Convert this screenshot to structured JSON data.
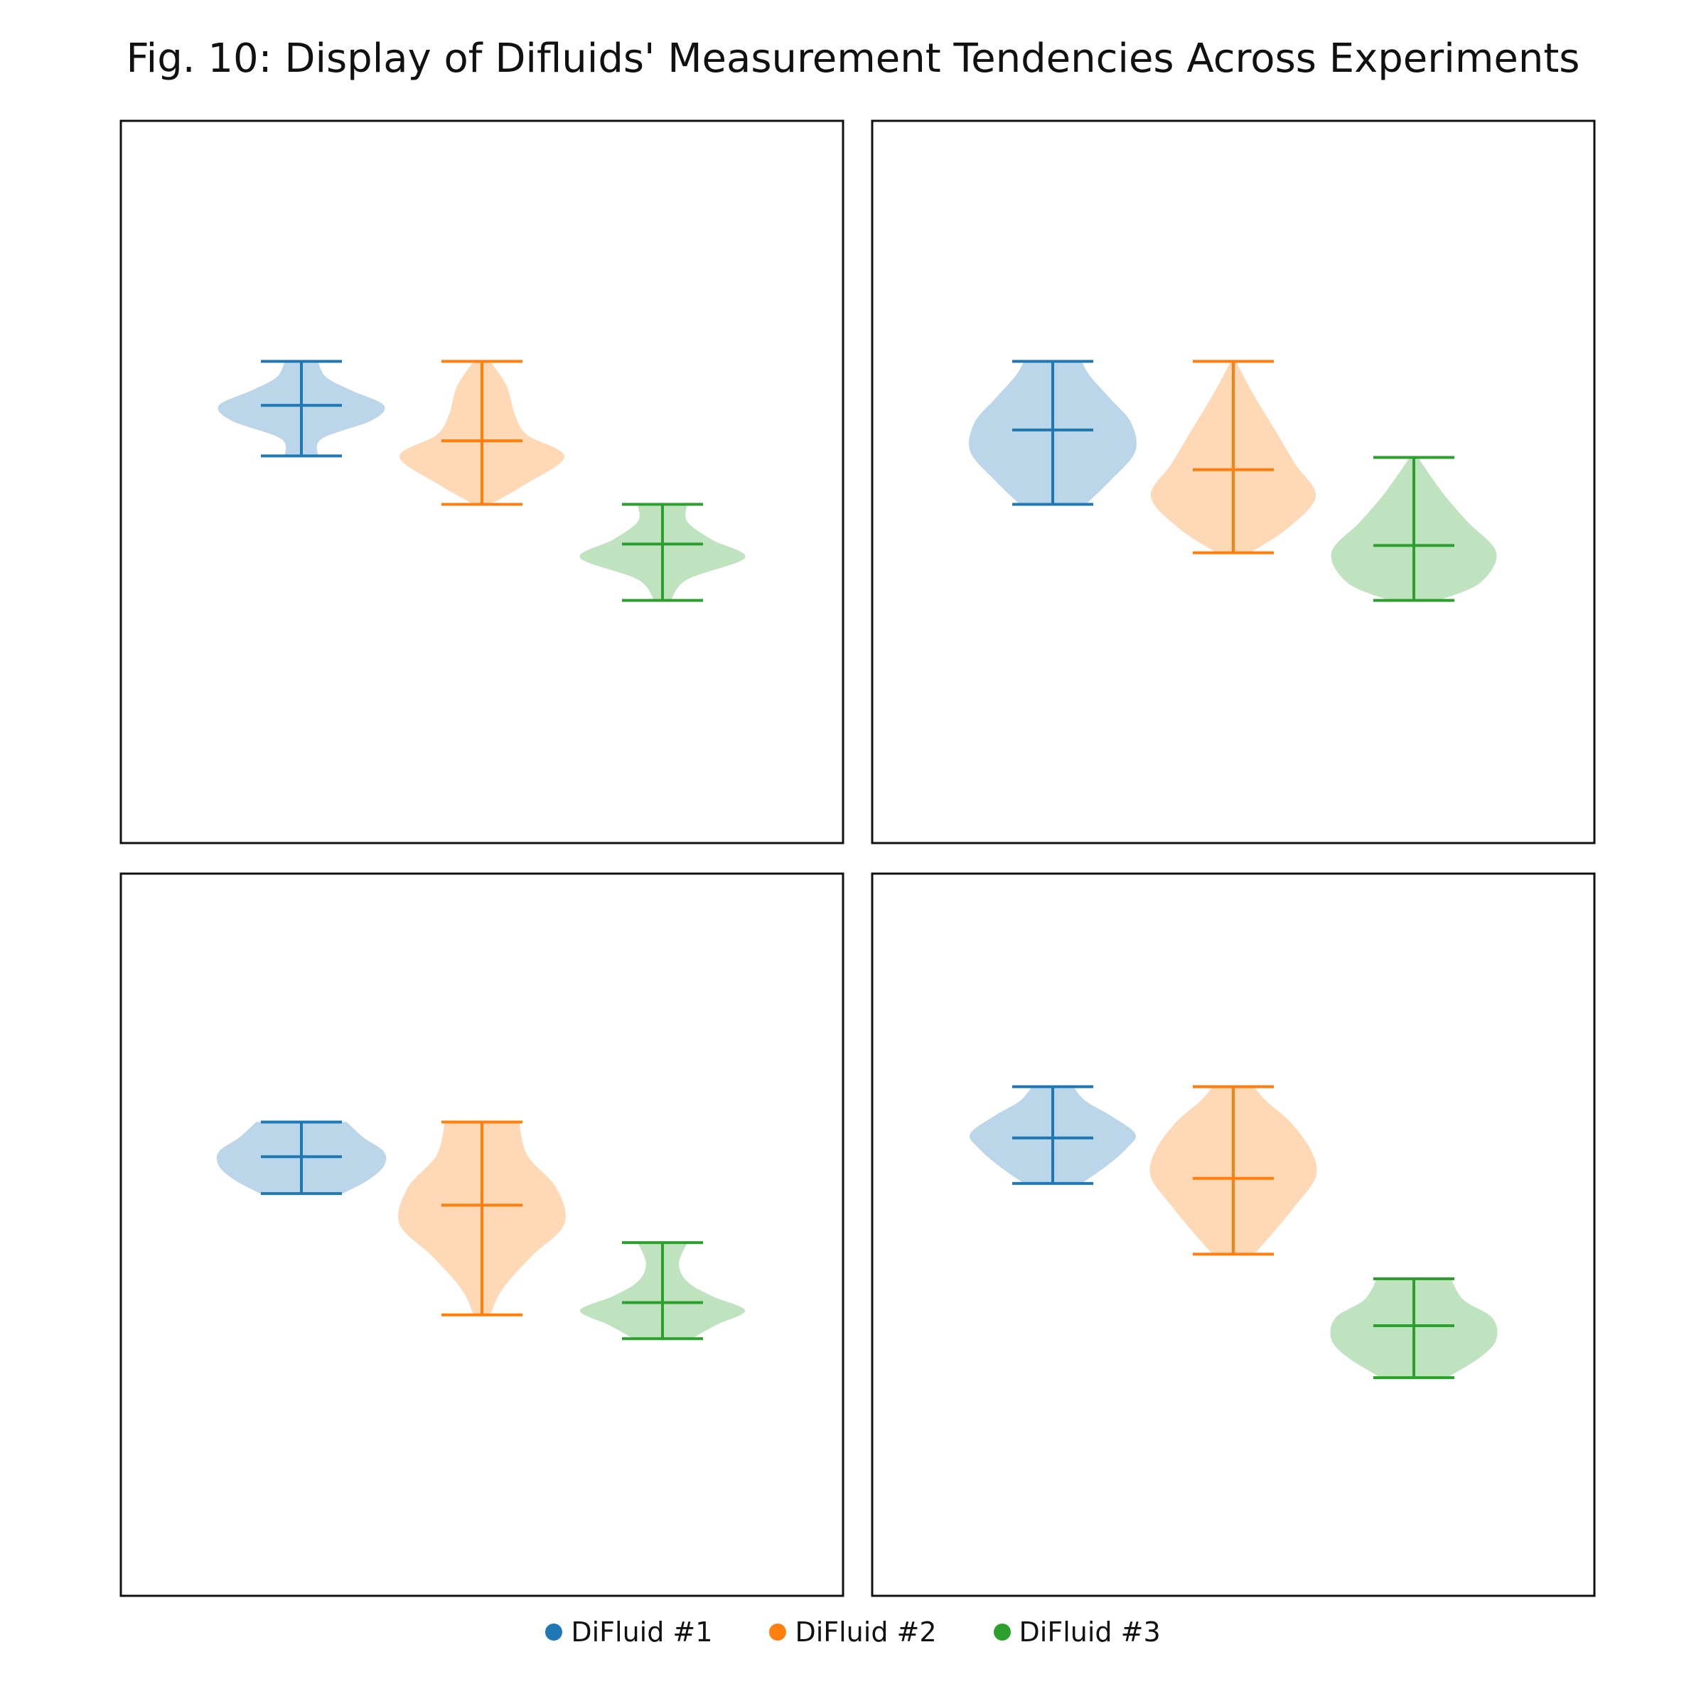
{
  "figure_title": "Fig. 10: Display of Difluids' Measurement Tendencies Across Experiments",
  "legend": [
    {
      "label": "DiFluid #1",
      "color": "#1f77b4"
    },
    {
      "label": "DiFluid #2",
      "color": "#ff7f0e"
    },
    {
      "label": "DiFluid #3",
      "color": "#2ca02c"
    }
  ],
  "chart_data": [
    {
      "type": "violin",
      "ylim": [
        0,
        100
      ],
      "grid": false,
      "series": [
        {
          "name": "DiFluid #1",
          "min": 53.6,
          "median": 60.6,
          "max": 66.7,
          "density": [
            [
              53.6,
              0.2
            ],
            [
              56,
              0.25
            ],
            [
              58.5,
              0.85
            ],
            [
              60.6,
              1.0
            ],
            [
              62.7,
              0.6
            ],
            [
              64.5,
              0.3
            ],
            [
              66.7,
              0.2
            ]
          ]
        },
        {
          "name": "DiFluid #2",
          "min": 46.9,
          "median": 55.7,
          "max": 66.7,
          "density": [
            [
              46.9,
              0.1
            ],
            [
              49.5,
              0.5
            ],
            [
              53.5,
              1.0
            ],
            [
              56.5,
              0.55
            ],
            [
              59.3,
              0.4
            ],
            [
              63.3,
              0.3
            ],
            [
              66.7,
              0.1
            ]
          ]
        },
        {
          "name": "DiFluid #3",
          "min": 33.6,
          "median": 41.4,
          "max": 46.9,
          "density": [
            [
              33.6,
              0.1
            ],
            [
              36.5,
              0.3
            ],
            [
              39.5,
              1.0
            ],
            [
              42,
              0.6
            ],
            [
              44.5,
              0.3
            ],
            [
              46.9,
              0.3
            ]
          ]
        }
      ]
    },
    {
      "type": "violin",
      "ylim": [
        0,
        100
      ],
      "grid": false,
      "series": [
        {
          "name": "DiFluid #1",
          "min": 46.9,
          "median": 57.2,
          "max": 66.7,
          "density": [
            [
              46.9,
              0.4
            ],
            [
              50.2,
              0.7
            ],
            [
              54.2,
              1.0
            ],
            [
              58.2,
              0.95
            ],
            [
              61.5,
              0.7
            ],
            [
              64.7,
              0.45
            ],
            [
              66.7,
              0.35
            ]
          ]
        },
        {
          "name": "DiFluid #2",
          "min": 40.2,
          "median": 51.7,
          "max": 66.7,
          "density": [
            [
              40.2,
              0.2
            ],
            [
              43.5,
              0.65
            ],
            [
              48,
              1.0
            ],
            [
              52.5,
              0.75
            ],
            [
              57.3,
              0.5
            ],
            [
              62,
              0.25
            ],
            [
              66.7,
              0.03
            ]
          ]
        },
        {
          "name": "DiFluid #3",
          "min": 33.6,
          "median": 41.2,
          "max": 53.4,
          "density": [
            [
              33.6,
              0.3
            ],
            [
              36,
              0.8
            ],
            [
              40.2,
              1.0
            ],
            [
              44.5,
              0.65
            ],
            [
              48.5,
              0.35
            ],
            [
              53.4,
              0.05
            ]
          ]
        }
      ]
    },
    {
      "type": "violin",
      "ylim": [
        0,
        100
      ],
      "grid": false,
      "series": [
        {
          "name": "DiFluid #1",
          "min": 55.7,
          "median": 60.8,
          "max": 65.6,
          "density": [
            [
              55.7,
              0.5
            ],
            [
              57.5,
              0.8
            ],
            [
              59.5,
              1.0
            ],
            [
              61.5,
              1.0
            ],
            [
              63.5,
              0.75
            ],
            [
              65.6,
              0.55
            ]
          ]
        },
        {
          "name": "DiFluid #2",
          "min": 38.9,
          "median": 54.1,
          "max": 65.6,
          "density": [
            [
              38.9,
              0.1
            ],
            [
              42.5,
              0.25
            ],
            [
              47,
              0.6
            ],
            [
              51.5,
              1.0
            ],
            [
              56.5,
              0.9
            ],
            [
              61,
              0.55
            ],
            [
              65.6,
              0.45
            ]
          ]
        },
        {
          "name": "DiFluid #3",
          "min": 35.6,
          "median": 40.6,
          "max": 48.9,
          "density": [
            [
              35.6,
              0.35
            ],
            [
              37.5,
              0.65
            ],
            [
              39.5,
              1.0
            ],
            [
              41.5,
              0.6
            ],
            [
              43.5,
              0.3
            ],
            [
              46,
              0.2
            ],
            [
              48.9,
              0.3
            ]
          ]
        }
      ]
    },
    {
      "type": "violin",
      "ylim": [
        0,
        100
      ],
      "grid": false,
      "series": [
        {
          "name": "DiFluid #1",
          "min": 57.1,
          "median": 63.4,
          "max": 70.5,
          "density": [
            [
              57.1,
              0.35
            ],
            [
              59.5,
              0.65
            ],
            [
              62,
              0.9
            ],
            [
              64,
              1.0
            ],
            [
              66.5,
              0.7
            ],
            [
              68.5,
              0.4
            ],
            [
              70.5,
              0.25
            ]
          ]
        },
        {
          "name": "DiFluid #2",
          "min": 47.3,
          "median": 57.8,
          "max": 70.5,
          "density": [
            [
              47.3,
              0.25
            ],
            [
              50.5,
              0.5
            ],
            [
              54,
              0.75
            ],
            [
              58,
              1.0
            ],
            [
              61.5,
              0.95
            ],
            [
              65.5,
              0.7
            ],
            [
              68.5,
              0.4
            ],
            [
              70.5,
              0.25
            ]
          ]
        },
        {
          "name": "DiFluid #3",
          "min": 30.2,
          "median": 37.4,
          "max": 43.9,
          "density": [
            [
              30.2,
              0.4
            ],
            [
              33,
              0.8
            ],
            [
              35.5,
              1.0
            ],
            [
              38.5,
              0.95
            ],
            [
              41,
              0.6
            ],
            [
              43.9,
              0.45
            ]
          ]
        }
      ]
    }
  ]
}
